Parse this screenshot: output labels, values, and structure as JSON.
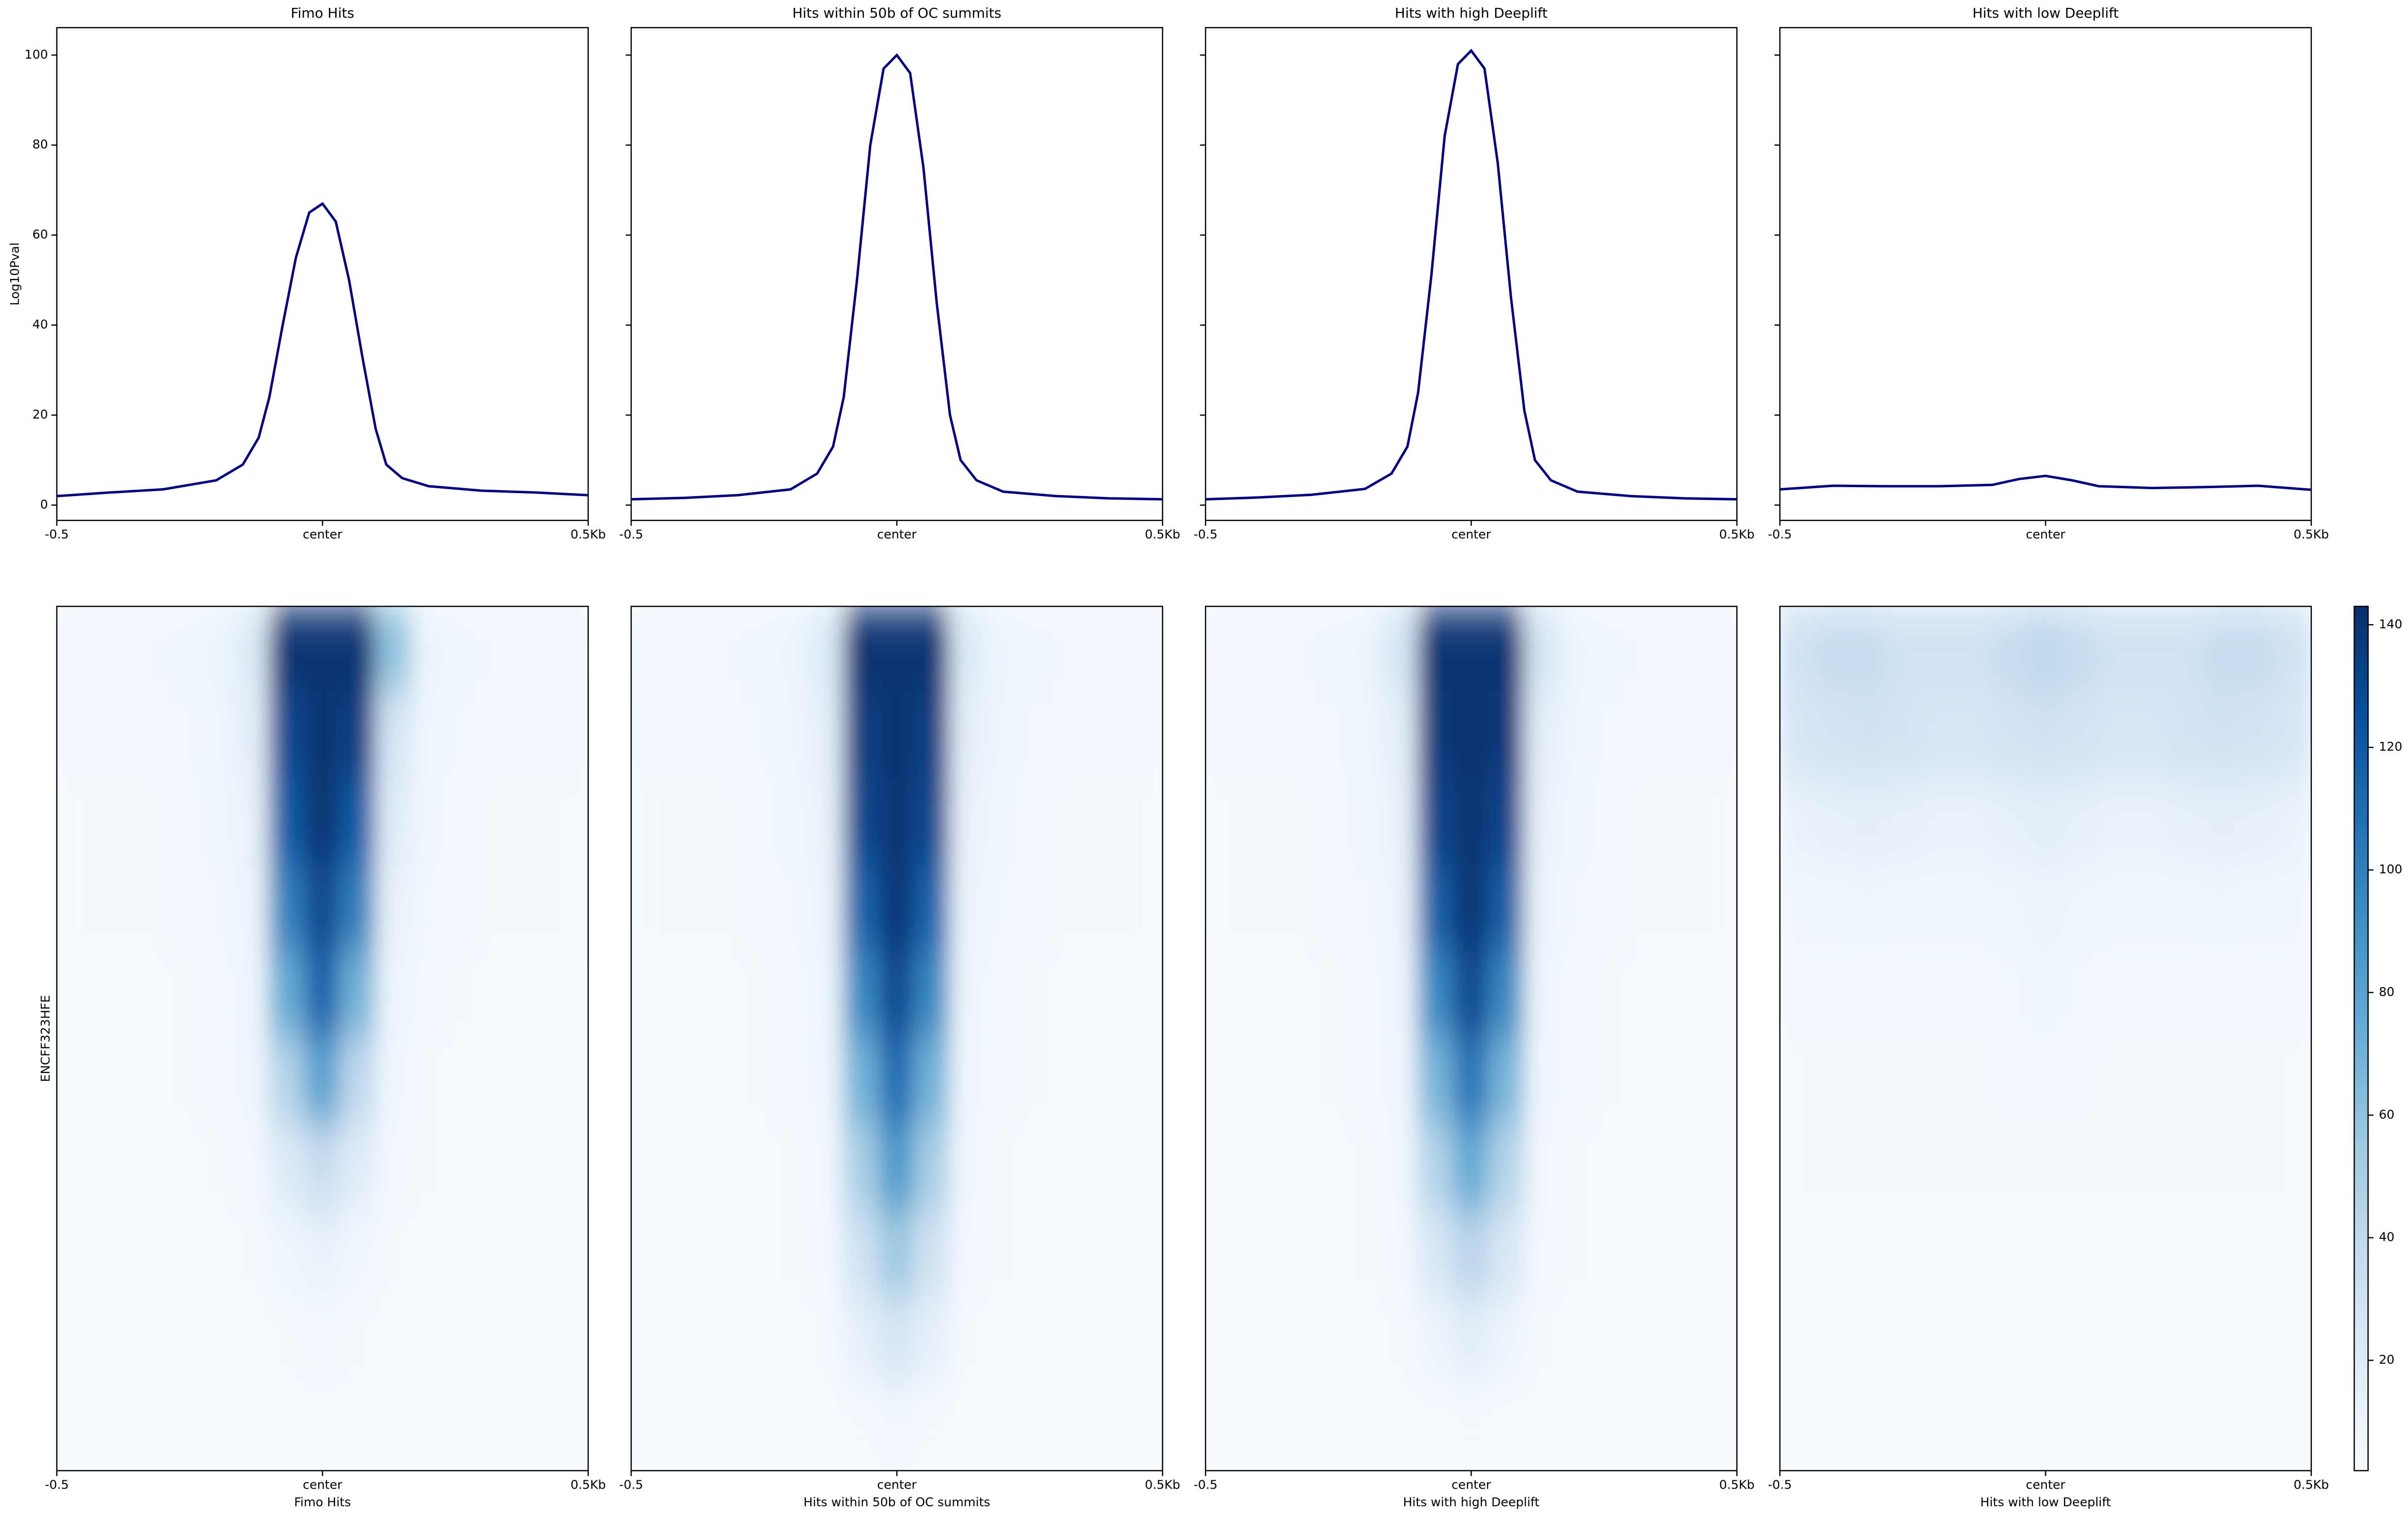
{
  "chart_data": [
    {
      "type": "line",
      "title": "Fimo Hits",
      "ylabel": "Log10Pval",
      "color": "#000080",
      "x": [
        -0.5,
        -0.4,
        -0.3,
        -0.2,
        -0.15,
        -0.12,
        -0.1,
        -0.075,
        -0.05,
        -0.025,
        0,
        0.025,
        0.05,
        0.075,
        0.1,
        0.12,
        0.15,
        0.2,
        0.3,
        0.4,
        0.5
      ],
      "values": [
        2,
        2.8,
        3.5,
        5.5,
        9,
        15,
        24,
        40,
        55,
        65,
        67,
        63,
        50,
        33,
        17,
        9,
        6,
        4.2,
        3.2,
        2.8,
        2.2
      ],
      "xlim": [
        -0.5,
        0.5
      ],
      "xticks": [
        -0.5,
        {
          "value": 0,
          "label": "center"
        },
        {
          "value": 0.5,
          "label": "0.5Kb"
        }
      ],
      "ylim": [
        -3.4,
        106.1
      ],
      "yticks": [
        0,
        20,
        40,
        60,
        80,
        100
      ],
      "show_ytick_labels": true
    },
    {
      "type": "line",
      "title": "Hits within 50b of OC summits",
      "color": "#000080",
      "x": [
        -0.5,
        -0.4,
        -0.3,
        -0.2,
        -0.15,
        -0.12,
        -0.1,
        -0.075,
        -0.05,
        -0.025,
        0,
        0.025,
        0.05,
        0.075,
        0.1,
        0.12,
        0.15,
        0.2,
        0.3,
        0.4,
        0.5
      ],
      "values": [
        1.3,
        1.6,
        2.2,
        3.5,
        7,
        13,
        24,
        50,
        80,
        97,
        100,
        96,
        75,
        45,
        20,
        10,
        5.5,
        3,
        2,
        1.5,
        1.3
      ],
      "xlim": [
        -0.5,
        0.5
      ],
      "xticks": [
        -0.5,
        {
          "value": 0,
          "label": "center"
        },
        {
          "value": 0.5,
          "label": "0.5Kb"
        }
      ],
      "ylim": [
        -3.4,
        106.1
      ],
      "yticks": [
        0,
        20,
        40,
        60,
        80,
        100
      ],
      "show_ytick_labels": false
    },
    {
      "type": "line",
      "title": "Hits with high Deeplift",
      "color": "#000080",
      "x": [
        -0.5,
        -0.4,
        -0.3,
        -0.2,
        -0.15,
        -0.12,
        -0.1,
        -0.075,
        -0.05,
        -0.025,
        0,
        0.025,
        0.05,
        0.075,
        0.1,
        0.12,
        0.15,
        0.2,
        0.3,
        0.4,
        0.5
      ],
      "values": [
        1.3,
        1.7,
        2.3,
        3.6,
        7,
        13,
        25,
        51,
        82,
        98,
        101,
        97,
        76,
        46,
        21,
        10,
        5.5,
        3,
        2,
        1.5,
        1.3
      ],
      "xlim": [
        -0.5,
        0.5
      ],
      "xticks": [
        -0.5,
        {
          "value": 0,
          "label": "center"
        },
        {
          "value": 0.5,
          "label": "0.5Kb"
        }
      ],
      "ylim": [
        -3.4,
        106.1
      ],
      "yticks": [
        0,
        20,
        40,
        60,
        80,
        100
      ],
      "show_ytick_labels": false
    },
    {
      "type": "line",
      "title": "Hits with low Deeplift",
      "color": "#000080",
      "x": [
        -0.5,
        -0.4,
        -0.3,
        -0.2,
        -0.1,
        -0.05,
        0,
        0.05,
        0.1,
        0.2,
        0.3,
        0.4,
        0.5
      ],
      "values": [
        3.5,
        4.3,
        4.2,
        4.2,
        4.5,
        5.8,
        6.5,
        5.5,
        4.2,
        3.8,
        4,
        4.3,
        3.4
      ],
      "xlim": [
        -0.5,
        0.5
      ],
      "xticks": [
        -0.5,
        {
          "value": 0,
          "label": "center"
        },
        {
          "value": 0.5,
          "label": "0.5Kb"
        }
      ],
      "ylim": [
        -3.4,
        106.1
      ],
      "yticks": [
        0,
        20,
        40,
        60,
        80,
        100
      ],
      "show_ytick_labels": false
    },
    {
      "type": "heatmap",
      "xlabel": "Fimo Hits",
      "ylabel": "ENCFF323HFE",
      "colormap": "Blues",
      "zlim": [
        2,
        143
      ],
      "xlim": [
        -0.5,
        0.5
      ],
      "xticks": [
        -0.5,
        {
          "value": 0,
          "label": "center"
        },
        {
          "value": 0.5,
          "label": "0.5Kb"
        }
      ],
      "z": [
        [
          6,
          6,
          6,
          7,
          9,
          20,
          140,
          140,
          140,
          60,
          10,
          7,
          6,
          6,
          6
        ],
        [
          5,
          5,
          5,
          6,
          8,
          15,
          130,
          140,
          135,
          25,
          8,
          6,
          5,
          5,
          5
        ],
        [
          4,
          4,
          4,
          5,
          7,
          12,
          120,
          140,
          120,
          18,
          7,
          5,
          4,
          4,
          4
        ],
        [
          4,
          4,
          4,
          5,
          6,
          10,
          100,
          130,
          100,
          12,
          6,
          5,
          4,
          4,
          4
        ],
        [
          3,
          3,
          3,
          4,
          5,
          8,
          75,
          115,
          70,
          9,
          5,
          4,
          3,
          3,
          3
        ],
        [
          3,
          3,
          3,
          4,
          5,
          7,
          45,
          80,
          40,
          7,
          4,
          3,
          3,
          3,
          3
        ],
        [
          3,
          3,
          3,
          3,
          4,
          5,
          20,
          35,
          18,
          5,
          4,
          3,
          3,
          3,
          3
        ],
        [
          2,
          2,
          2,
          3,
          3,
          4,
          8,
          12,
          7,
          4,
          3,
          3,
          2,
          2,
          2
        ],
        [
          2,
          2,
          2,
          2,
          3,
          3,
          4,
          5,
          4,
          3,
          3,
          2,
          2,
          2,
          2
        ],
        [
          2,
          2,
          2,
          2,
          2,
          3,
          3,
          3,
          3,
          3,
          2,
          2,
          2,
          2,
          2
        ]
      ]
    },
    {
      "type": "heatmap",
      "xlabel": "Hits within 50b of OC summits",
      "colormap": "Blues",
      "zlim": [
        2,
        143
      ],
      "xlim": [
        -0.5,
        0.5
      ],
      "xticks": [
        -0.5,
        {
          "value": 0,
          "label": "center"
        },
        {
          "value": 0.5,
          "label": "0.5Kb"
        }
      ],
      "z": [
        [
          6,
          6,
          6,
          7,
          9,
          20,
          140,
          140,
          140,
          20,
          9,
          7,
          6,
          6,
          6
        ],
        [
          5,
          5,
          5,
          6,
          8,
          15,
          135,
          140,
          135,
          15,
          8,
          6,
          5,
          5,
          5
        ],
        [
          4,
          4,
          4,
          5,
          7,
          12,
          130,
          140,
          130,
          12,
          7,
          5,
          4,
          4,
          4
        ],
        [
          4,
          4,
          4,
          5,
          6,
          10,
          115,
          140,
          115,
          10,
          6,
          5,
          4,
          4,
          4
        ],
        [
          3,
          3,
          3,
          4,
          5,
          8,
          95,
          130,
          95,
          8,
          5,
          4,
          3,
          3,
          3
        ],
        [
          3,
          3,
          3,
          4,
          5,
          7,
          70,
          110,
          70,
          7,
          5,
          4,
          3,
          3,
          3
        ],
        [
          3,
          3,
          3,
          3,
          4,
          6,
          50,
          85,
          50,
          6,
          4,
          3,
          3,
          3,
          3
        ],
        [
          2,
          2,
          2,
          3,
          4,
          5,
          30,
          55,
          30,
          5,
          4,
          3,
          2,
          2,
          2
        ],
        [
          2,
          2,
          2,
          2,
          3,
          4,
          14,
          25,
          14,
          4,
          3,
          2,
          2,
          2,
          2
        ],
        [
          2,
          2,
          2,
          2,
          2,
          3,
          4,
          6,
          4,
          3,
          2,
          2,
          2,
          2,
          2
        ]
      ]
    },
    {
      "type": "heatmap",
      "xlabel": "Hits with high Deeplift",
      "colormap": "Blues",
      "zlim": [
        2,
        143
      ],
      "xlim": [
        -0.5,
        0.5
      ],
      "xticks": [
        -0.5,
        {
          "value": 0,
          "label": "center"
        },
        {
          "value": 0.5,
          "label": "0.5Kb"
        }
      ],
      "z": [
        [
          6,
          6,
          6,
          7,
          9,
          25,
          140,
          140,
          140,
          25,
          9,
          7,
          6,
          6,
          6
        ],
        [
          5,
          5,
          5,
          6,
          8,
          15,
          138,
          140,
          138,
          15,
          8,
          6,
          5,
          5,
          5
        ],
        [
          4,
          4,
          4,
          5,
          7,
          12,
          132,
          140,
          132,
          12,
          7,
          5,
          4,
          4,
          4
        ],
        [
          4,
          4,
          4,
          5,
          6,
          10,
          118,
          140,
          118,
          10,
          6,
          5,
          4,
          4,
          4
        ],
        [
          3,
          3,
          3,
          4,
          5,
          8,
          95,
          130,
          95,
          8,
          5,
          4,
          3,
          3,
          3
        ],
        [
          3,
          3,
          3,
          4,
          5,
          7,
          68,
          105,
          68,
          7,
          5,
          4,
          3,
          3,
          3
        ],
        [
          3,
          3,
          3,
          3,
          4,
          6,
          45,
          75,
          45,
          6,
          4,
          3,
          3,
          3,
          3
        ],
        [
          2,
          2,
          2,
          3,
          4,
          5,
          24,
          42,
          24,
          5,
          4,
          3,
          2,
          2,
          2
        ],
        [
          2,
          2,
          2,
          2,
          3,
          4,
          10,
          16,
          10,
          4,
          3,
          2,
          2,
          2,
          2
        ],
        [
          2,
          2,
          2,
          2,
          2,
          3,
          3,
          4,
          3,
          3,
          2,
          2,
          2,
          2,
          2
        ]
      ]
    },
    {
      "type": "heatmap",
      "xlabel": "Hits with low Deeplift",
      "colormap": "Blues",
      "zlim": [
        2,
        143
      ],
      "colorbar": true,
      "zticks": [
        20,
        40,
        60,
        80,
        100,
        120,
        140
      ],
      "xlim": [
        -0.5,
        0.5
      ],
      "xticks": [
        -0.5,
        {
          "value": 0,
          "label": "center"
        },
        {
          "value": 0.5,
          "label": "0.5Kb"
        }
      ],
      "z": [
        [
          30,
          35,
          35,
          30,
          30,
          30,
          35,
          40,
          35,
          30,
          30,
          30,
          35,
          35,
          30
        ],
        [
          25,
          28,
          30,
          28,
          25,
          25,
          28,
          30,
          28,
          25,
          25,
          28,
          30,
          28,
          25
        ],
        [
          12,
          14,
          15,
          14,
          12,
          12,
          14,
          16,
          14,
          12,
          12,
          14,
          15,
          14,
          12
        ],
        [
          7,
          7,
          8,
          7,
          7,
          7,
          8,
          10,
          8,
          7,
          7,
          7,
          8,
          7,
          7
        ],
        [
          5,
          5,
          5,
          5,
          5,
          5,
          6,
          8,
          6,
          5,
          5,
          5,
          5,
          5,
          5
        ],
        [
          4,
          4,
          4,
          4,
          4,
          4,
          5,
          5,
          5,
          4,
          4,
          4,
          4,
          4,
          4
        ],
        [
          4,
          4,
          4,
          4,
          4,
          4,
          4,
          4,
          4,
          4,
          4,
          4,
          4,
          4,
          4
        ],
        [
          3,
          3,
          3,
          3,
          3,
          3,
          3,
          3,
          3,
          3,
          3,
          3,
          3,
          3,
          3
        ],
        [
          3,
          3,
          3,
          3,
          3,
          3,
          3,
          3,
          3,
          3,
          3,
          3,
          3,
          3,
          3
        ],
        [
          3,
          3,
          3,
          3,
          3,
          3,
          3,
          3,
          3,
          3,
          3,
          3,
          3,
          3,
          3
        ]
      ]
    }
  ]
}
